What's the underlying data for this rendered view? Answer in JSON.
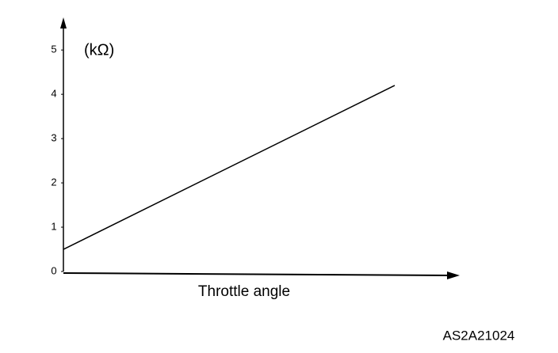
{
  "chart_data": {
    "type": "line",
    "y_label": "(kΩ)",
    "x_label": "Throttle angle",
    "code": "AS2A21024",
    "categories": [
      null,
      null
    ],
    "values": [
      0.5,
      4.2
    ],
    "color": "#000000",
    "ylim": [
      0,
      5.7
    ],
    "yticks": [
      0,
      1,
      2,
      3,
      4,
      5
    ]
  }
}
